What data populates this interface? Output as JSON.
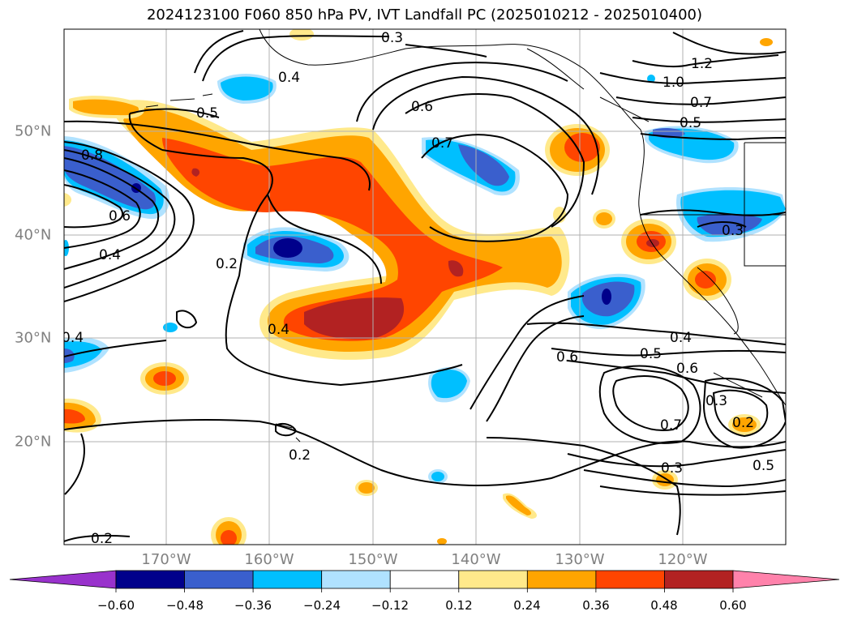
{
  "title": "2024123100 F060 850 hPa PV, IVT Landfall PC (2025010212 - 2025010400)",
  "lon_labels": [
    "170°W",
    "160°W",
    "150°W",
    "140°W",
    "130°W",
    "120°W"
  ],
  "lat_labels": [
    "50°N",
    "40°N",
    "30°N",
    "20°N"
  ],
  "contour_labels": [
    "0.3",
    "0.4",
    "0.5",
    "0.6",
    "0.7",
    "1.2",
    "1.0",
    "0.7",
    "0.5",
    "0.8",
    "0.6",
    "0.4",
    "0.2",
    "0.4",
    "0.4",
    "0.6",
    "0.5",
    "0.6",
    "0.7",
    "0.3",
    "0.2",
    "0.2",
    "0.3",
    "0.4",
    "0.5",
    "0.3",
    "0.2"
  ],
  "colorbar": {
    "ticks": [
      "−0.60",
      "−0.48",
      "−0.36",
      "−0.24",
      "−0.12",
      "0.12",
      "0.24",
      "0.36",
      "0.48",
      "0.60"
    ],
    "colors": [
      "#9932cc",
      "#00008b",
      "#3a5fcd",
      "#00bfff",
      "#b0e2ff",
      "#ffffff",
      "#ffe98b",
      "#ffa500",
      "#ff4500",
      "#b22222",
      "#ff82ab"
    ]
  },
  "colors": {
    "gridline": "#b0b0b0",
    "contour": "#000000",
    "coast": "#000000"
  }
}
